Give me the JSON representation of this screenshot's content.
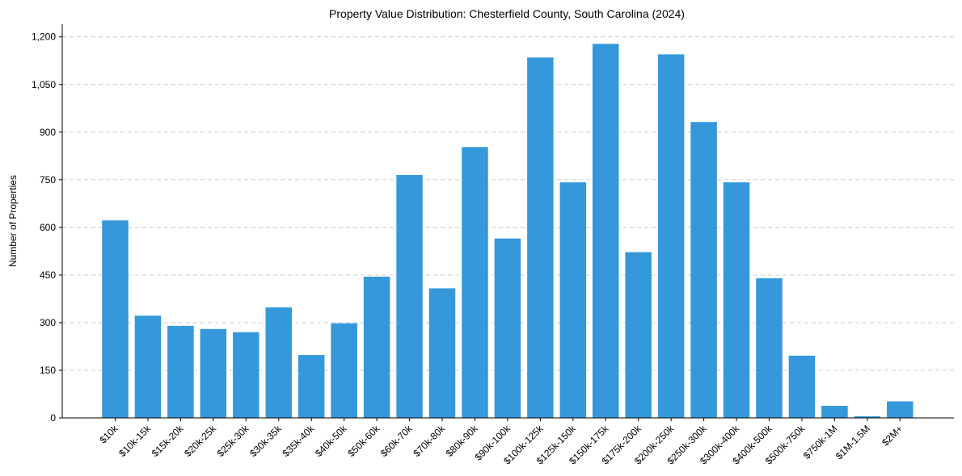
{
  "chart_data": {
    "type": "bar",
    "title": "Property Value Distribution: Chesterfield County, South Carolina (2024)",
    "xlabel": "",
    "ylabel": "Number of Properties",
    "ylim": [
      0,
      1240
    ],
    "yticks": [
      0,
      150,
      300,
      450,
      600,
      750,
      900,
      1050,
      1200
    ],
    "ytick_labels": [
      "0",
      "150",
      "300",
      "450",
      "600",
      "750",
      "900",
      "1,050",
      "1,200"
    ],
    "grid": "y-dashed",
    "bar_color": "#3498db",
    "categories": [
      "$10k",
      "$10k-15k",
      "$15k-20k",
      "$20k-25k",
      "$25k-30k",
      "$30k-35k",
      "$35k-40k",
      "$40k-50k",
      "$50k-60k",
      "$60k-70k",
      "$70k-80k",
      "$80k-90k",
      "$90k-100k",
      "$100k-125k",
      "$125k-150k",
      "$150k-175k",
      "$175k-200k",
      "$200k-250k",
      "$250k-300k",
      "$300k-400k",
      "$400k-500k",
      "$500k-750k",
      "$750k-1M",
      "$1M-1.5M",
      "$2M+"
    ],
    "values": [
      622,
      322,
      290,
      280,
      270,
      348,
      198,
      298,
      445,
      765,
      408,
      853,
      565,
      1135,
      742,
      1178,
      522,
      1145,
      932,
      742,
      440,
      196,
      38,
      5,
      52
    ]
  }
}
